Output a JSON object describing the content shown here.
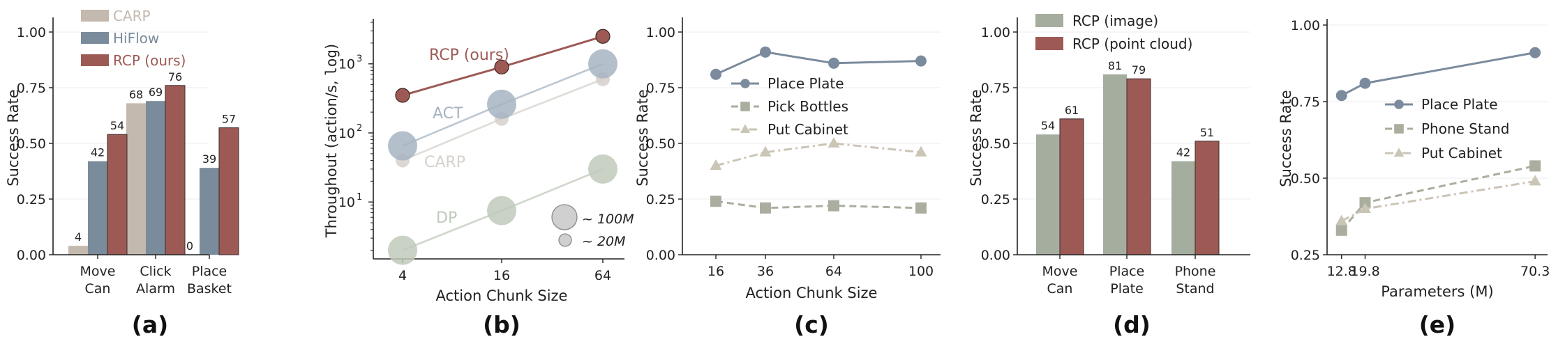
{
  "colors": {
    "carp": "#c4b9ae",
    "hiflow": "#7a8b9b",
    "rcp": "#9d5a55",
    "rcp_image": "#a5ad9f",
    "plate": "#7b8b9d",
    "bottles": "#a9ae9f",
    "cabinet": "#cbc5b6",
    "act": "#a6b4c2",
    "carp_b": "#d6d0cb",
    "dp": "#bfcabb"
  },
  "chart_data": [
    {
      "type": "bar",
      "panel_label": "(a)",
      "ylabel": "Success Rate",
      "ylim": [
        0,
        1.05
      ],
      "yticks": [
        "0.00",
        "0.25",
        "0.50",
        "0.75",
        "1.00"
      ],
      "yticks_values": [
        0,
        0.25,
        0.5,
        0.75,
        1.0
      ],
      "categories": [
        [
          "Move",
          "Can"
        ],
        [
          "Click",
          "Alarm"
        ],
        [
          "Place",
          "Basket"
        ]
      ],
      "series": [
        {
          "name": "CARP",
          "values": [
            0.04,
            0.68,
            0.0
          ],
          "labels": [
            "4",
            "68",
            "0"
          ],
          "color_key": "carp"
        },
        {
          "name": "HiFlow",
          "values": [
            0.42,
            0.69,
            0.39
          ],
          "labels": [
            "42",
            "69",
            "39"
          ],
          "color_key": "hiflow"
        },
        {
          "name": "RCP (ours)",
          "values": [
            0.54,
            0.76,
            0.57
          ],
          "labels": [
            "54",
            "76",
            "57"
          ],
          "color_key": "rcp"
        }
      ],
      "legend": "top-left",
      "grid": "y"
    },
    {
      "type": "scatter",
      "panel_label": "(b)",
      "xlabel": "Action Chunk Size",
      "ylabel_prefix": "Throughout (action/s, ",
      "ylabel_mono": "log",
      "ylabel_suffix": ")",
      "x": [
        4,
        16,
        64
      ],
      "xticks": [
        "4",
        "16",
        "64"
      ],
      "yscale": "log",
      "ylim": [
        1.5,
        4000
      ],
      "yticks": [
        {
          "base": "10",
          "exp": "1",
          "value": 10
        },
        {
          "base": "10",
          "exp": "2",
          "value": 100
        },
        {
          "base": "10",
          "exp": "3",
          "value": 1000
        }
      ],
      "series": [
        {
          "name": "RCP (ours)",
          "values": [
            350,
            900,
            2500
          ],
          "color_key": "rcp",
          "size": "small"
        },
        {
          "name": "ACT",
          "values": [
            65,
            260,
            1000
          ],
          "color_key": "act",
          "size": "large"
        },
        {
          "name": "CARP",
          "values": [
            40,
            160,
            600
          ],
          "color_key": "carp_b",
          "size": "small"
        },
        {
          "name": "DP",
          "values": [
            2,
            7.5,
            30
          ],
          "color_key": "dp",
          "size": "large"
        }
      ],
      "size_legend": [
        {
          "label": "~ 100M",
          "size": "large"
        },
        {
          "label": "~ 20M",
          "size": "small"
        }
      ]
    },
    {
      "type": "line",
      "panel_label": "(c)",
      "xlabel": "Action Chunk Size",
      "ylabel": "Success Rate",
      "xticks": [
        "16",
        "36",
        "64",
        "100"
      ],
      "ylim": [
        0,
        1.05
      ],
      "yticks": [
        "0.00",
        "0.25",
        "0.50",
        "0.75",
        "1.00"
      ],
      "yticks_values": [
        0,
        0.25,
        0.5,
        0.75,
        1.0
      ],
      "series": [
        {
          "name": "Place Plate",
          "values": [
            0.81,
            0.91,
            0.86,
            0.87
          ],
          "color_key": "plate",
          "marker": "circle",
          "dash": ""
        },
        {
          "name": "Pick Bottles",
          "values": [
            0.24,
            0.21,
            0.22,
            0.21
          ],
          "color_key": "bottles",
          "marker": "square",
          "dash": "10,6"
        },
        {
          "name": "Put Cabinet",
          "values": [
            0.4,
            0.46,
            0.5,
            0.46
          ],
          "color_key": "cabinet",
          "marker": "triangle",
          "dash": "12,5,3,5"
        }
      ],
      "legend": "center-left",
      "grid": "y"
    },
    {
      "type": "bar",
      "panel_label": "(d)",
      "ylabel": "Success Rate",
      "ylim": [
        0,
        1.05
      ],
      "yticks": [
        "0.00",
        "0.25",
        "0.50",
        "0.75",
        "1.00"
      ],
      "yticks_values": [
        0,
        0.25,
        0.5,
        0.75,
        1.0
      ],
      "categories": [
        [
          "Move",
          "Can"
        ],
        [
          "Place",
          "Plate"
        ],
        [
          "Phone",
          "Stand"
        ]
      ],
      "series": [
        {
          "name": "RCP (image)",
          "values": [
            0.54,
            0.81,
            0.42
          ],
          "labels": [
            "54",
            "81",
            "42"
          ],
          "color_key": "rcp_image"
        },
        {
          "name": "RCP (point cloud)",
          "values": [
            0.61,
            0.79,
            0.51
          ],
          "labels": [
            "61",
            "79",
            "51"
          ],
          "color_key": "rcp"
        }
      ],
      "legend": "top-left",
      "grid": "y"
    },
    {
      "type": "line",
      "panel_label": "(e)",
      "xlabel": "Parameters (M)",
      "ylabel": "Success Rate",
      "x": [
        12.8,
        19.8,
        70.3
      ],
      "xticks": [
        "12.8",
        "19.8",
        "70.3"
      ],
      "ylim": [
        0.25,
        1.0
      ],
      "yticks": [
        "0.25",
        "0.50",
        "0.75",
        "1.00"
      ],
      "yticks_values": [
        0.25,
        0.5,
        0.75,
        1.0
      ],
      "series": [
        {
          "name": "Place Plate",
          "values": [
            0.77,
            0.81,
            0.91
          ],
          "color_key": "plate",
          "marker": "circle",
          "dash": ""
        },
        {
          "name": "Phone Stand",
          "values": [
            0.33,
            0.42,
            0.54
          ],
          "color_key": "bottles",
          "marker": "square",
          "dash": "10,6"
        },
        {
          "name": "Put Cabinet",
          "values": [
            0.36,
            0.4,
            0.49
          ],
          "color_key": "cabinet",
          "marker": "triangle",
          "dash": "12,5,3,5"
        }
      ],
      "legend": "center",
      "grid": "y"
    }
  ]
}
